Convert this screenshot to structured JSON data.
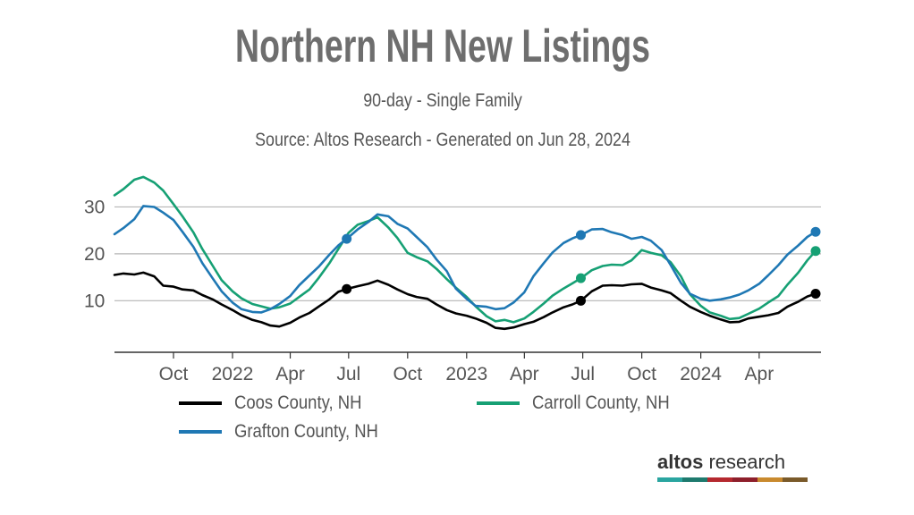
{
  "header": {
    "title": "Northern NH New Listings",
    "subtitle": "90-day - Single Family",
    "source": "Source: Altos Research - Generated on Jun 28, 2024"
  },
  "brand": {
    "name_bold": "altos",
    "name_rest": " research",
    "bar_colors": [
      "#2aa5a0",
      "#1e7a6e",
      "#b5292f",
      "#8e1f2b",
      "#c98a2e",
      "#7a5a2a"
    ]
  },
  "chart_data": {
    "type": "line",
    "title": "Northern NH New Listings",
    "subtitle": "90-day - Single Family",
    "xlabel": "",
    "ylabel": "",
    "x_start": "2021-07-01",
    "x_end": "2024-06-28",
    "ylim": [
      -1,
      36
    ],
    "yticks": [
      10,
      20,
      30
    ],
    "grid": true,
    "legend_position": "bottom",
    "xticks": [
      {
        "date": "2021-10-01",
        "label": "Oct"
      },
      {
        "date": "2022-01-01",
        "label": "2022"
      },
      {
        "date": "2022-04-01",
        "label": "Apr"
      },
      {
        "date": "2022-07-01",
        "label": "Jul"
      },
      {
        "date": "2022-10-01",
        "label": "Oct"
      },
      {
        "date": "2023-01-01",
        "label": "2023"
      },
      {
        "date": "2023-04-01",
        "label": "Apr"
      },
      {
        "date": "2023-07-01",
        "label": "Jul"
      },
      {
        "date": "2023-10-01",
        "label": "Oct"
      },
      {
        "date": "2024-01-01",
        "label": "2024"
      },
      {
        "date": "2024-04-01",
        "label": "Apr"
      }
    ],
    "series": [
      {
        "name": "Coos County, NH",
        "color": "#000000",
        "markers": [
          "2022-06-28",
          "2023-06-28",
          "2024-06-28"
        ],
        "points": [
          [
            "2021-07-01",
            15.5
          ],
          [
            "2021-07-15",
            15.8
          ],
          [
            "2021-08-01",
            15.6
          ],
          [
            "2021-08-15",
            16.0
          ],
          [
            "2021-09-01",
            15.2
          ],
          [
            "2021-09-15",
            13.2
          ],
          [
            "2021-10-01",
            13.0
          ],
          [
            "2021-10-15",
            12.4
          ],
          [
            "2021-11-01",
            12.2
          ],
          [
            "2021-11-15",
            11.2
          ],
          [
            "2021-12-01",
            10.3
          ],
          [
            "2021-12-15",
            9.2
          ],
          [
            "2022-01-01",
            8.0
          ],
          [
            "2022-01-15",
            6.9
          ],
          [
            "2022-02-01",
            5.9
          ],
          [
            "2022-02-15",
            5.4
          ],
          [
            "2022-03-01",
            4.7
          ],
          [
            "2022-03-15",
            4.5
          ],
          [
            "2022-04-01",
            5.3
          ],
          [
            "2022-04-15",
            6.4
          ],
          [
            "2022-05-01",
            7.4
          ],
          [
            "2022-05-15",
            8.7
          ],
          [
            "2022-06-01",
            10.3
          ],
          [
            "2022-06-15",
            11.9
          ],
          [
            "2022-06-28",
            12.5
          ],
          [
            "2022-07-15",
            13.1
          ],
          [
            "2022-08-01",
            13.6
          ],
          [
            "2022-08-15",
            14.3
          ],
          [
            "2022-09-01",
            13.4
          ],
          [
            "2022-09-15",
            12.4
          ],
          [
            "2022-10-01",
            11.4
          ],
          [
            "2022-10-15",
            10.8
          ],
          [
            "2022-11-01",
            10.4
          ],
          [
            "2022-11-15",
            9.2
          ],
          [
            "2022-12-01",
            8.0
          ],
          [
            "2022-12-15",
            7.3
          ],
          [
            "2023-01-01",
            6.8
          ],
          [
            "2023-01-15",
            6.2
          ],
          [
            "2023-02-01",
            5.3
          ],
          [
            "2023-02-15",
            4.2
          ],
          [
            "2023-03-01",
            4.0
          ],
          [
            "2023-03-15",
            4.3
          ],
          [
            "2023-04-01",
            5.0
          ],
          [
            "2023-04-15",
            5.5
          ],
          [
            "2023-05-01",
            6.5
          ],
          [
            "2023-05-15",
            7.5
          ],
          [
            "2023-06-01",
            8.6
          ],
          [
            "2023-06-15",
            9.2
          ],
          [
            "2023-06-28",
            10.0
          ],
          [
            "2023-07-15",
            12.0
          ],
          [
            "2023-08-01",
            13.2
          ],
          [
            "2023-08-15",
            13.3
          ],
          [
            "2023-09-01",
            13.2
          ],
          [
            "2023-09-15",
            13.5
          ],
          [
            "2023-10-01",
            13.6
          ],
          [
            "2023-10-15",
            12.8
          ],
          [
            "2023-11-01",
            12.2
          ],
          [
            "2023-11-15",
            11.6
          ],
          [
            "2023-12-01",
            10.0
          ],
          [
            "2023-12-15",
            8.7
          ],
          [
            "2024-01-01",
            7.6
          ],
          [
            "2024-01-15",
            6.8
          ],
          [
            "2024-02-01",
            6.0
          ],
          [
            "2024-02-15",
            5.4
          ],
          [
            "2024-03-01",
            5.5
          ],
          [
            "2024-03-15",
            6.2
          ],
          [
            "2024-04-01",
            6.6
          ],
          [
            "2024-04-15",
            6.9
          ],
          [
            "2024-05-01",
            7.4
          ],
          [
            "2024-05-15",
            8.7
          ],
          [
            "2024-06-01",
            9.8
          ],
          [
            "2024-06-15",
            10.9
          ],
          [
            "2024-06-28",
            11.5
          ]
        ]
      },
      {
        "name": "Carroll County, NH",
        "color": "#16a074",
        "markers": [
          "2023-06-28",
          "2024-06-28"
        ],
        "points": [
          [
            "2021-07-01",
            32.5
          ],
          [
            "2021-07-15",
            33.8
          ],
          [
            "2021-08-01",
            35.8
          ],
          [
            "2021-08-15",
            36.4
          ],
          [
            "2021-09-01",
            35.2
          ],
          [
            "2021-09-15",
            33.5
          ],
          [
            "2021-10-01",
            30.6
          ],
          [
            "2021-10-15",
            28.0
          ],
          [
            "2021-11-01",
            24.6
          ],
          [
            "2021-11-15",
            21.0
          ],
          [
            "2021-12-01",
            17.5
          ],
          [
            "2021-12-15",
            14.4
          ],
          [
            "2022-01-01",
            12.0
          ],
          [
            "2022-01-15",
            10.5
          ],
          [
            "2022-02-01",
            9.3
          ],
          [
            "2022-02-15",
            8.8
          ],
          [
            "2022-03-01",
            8.3
          ],
          [
            "2022-03-15",
            8.6
          ],
          [
            "2022-04-01",
            9.4
          ],
          [
            "2022-04-15",
            10.8
          ],
          [
            "2022-05-01",
            12.4
          ],
          [
            "2022-05-15",
            14.8
          ],
          [
            "2022-06-01",
            18.0
          ],
          [
            "2022-06-15",
            21.0
          ],
          [
            "2022-07-01",
            24.5
          ],
          [
            "2022-07-15",
            26.2
          ],
          [
            "2022-08-01",
            27.0
          ],
          [
            "2022-08-15",
            27.8
          ],
          [
            "2022-09-01",
            25.6
          ],
          [
            "2022-09-15",
            23.4
          ],
          [
            "2022-10-01",
            20.2
          ],
          [
            "2022-10-15",
            19.3
          ],
          [
            "2022-11-01",
            18.4
          ],
          [
            "2022-11-15",
            16.8
          ],
          [
            "2022-12-01",
            14.6
          ],
          [
            "2022-12-15",
            12.8
          ],
          [
            "2023-01-01",
            10.8
          ],
          [
            "2023-01-15",
            8.8
          ],
          [
            "2023-02-01",
            6.7
          ],
          [
            "2023-02-15",
            5.6
          ],
          [
            "2023-03-01",
            5.9
          ],
          [
            "2023-03-15",
            5.4
          ],
          [
            "2023-04-01",
            6.2
          ],
          [
            "2023-04-15",
            7.6
          ],
          [
            "2023-05-01",
            9.4
          ],
          [
            "2023-05-15",
            11.1
          ],
          [
            "2023-06-01",
            12.6
          ],
          [
            "2023-06-15",
            13.7
          ],
          [
            "2023-06-28",
            14.8
          ],
          [
            "2023-07-15",
            16.5
          ],
          [
            "2023-08-01",
            17.4
          ],
          [
            "2023-08-15",
            17.7
          ],
          [
            "2023-09-01",
            17.6
          ],
          [
            "2023-09-15",
            18.6
          ],
          [
            "2023-10-01",
            20.8
          ],
          [
            "2023-10-15",
            20.2
          ],
          [
            "2023-11-01",
            19.7
          ],
          [
            "2023-11-15",
            18.2
          ],
          [
            "2023-12-01",
            15.2
          ],
          [
            "2023-12-15",
            11.4
          ],
          [
            "2024-01-01",
            8.9
          ],
          [
            "2024-01-15",
            7.5
          ],
          [
            "2024-02-01",
            6.8
          ],
          [
            "2024-02-15",
            6.1
          ],
          [
            "2024-03-01",
            6.3
          ],
          [
            "2024-03-15",
            7.2
          ],
          [
            "2024-04-01",
            8.3
          ],
          [
            "2024-04-15",
            9.6
          ],
          [
            "2024-05-01",
            11.0
          ],
          [
            "2024-05-15",
            13.4
          ],
          [
            "2024-06-01",
            16.0
          ],
          [
            "2024-06-15",
            18.6
          ],
          [
            "2024-06-28",
            20.6
          ]
        ]
      },
      {
        "name": "Grafton County, NH",
        "color": "#1f78b4",
        "markers": [
          "2022-06-28",
          "2023-06-28",
          "2024-06-28"
        ],
        "points": [
          [
            "2021-07-01",
            24.2
          ],
          [
            "2021-07-15",
            25.5
          ],
          [
            "2021-08-01",
            27.4
          ],
          [
            "2021-08-15",
            30.2
          ],
          [
            "2021-09-01",
            30.0
          ],
          [
            "2021-09-15",
            28.8
          ],
          [
            "2021-10-01",
            27.2
          ],
          [
            "2021-10-15",
            24.7
          ],
          [
            "2021-11-01",
            21.5
          ],
          [
            "2021-11-15",
            18.0
          ],
          [
            "2021-12-01",
            14.8
          ],
          [
            "2021-12-15",
            12.0
          ],
          [
            "2022-01-01",
            9.6
          ],
          [
            "2022-01-15",
            8.2
          ],
          [
            "2022-02-01",
            7.6
          ],
          [
            "2022-02-15",
            7.5
          ],
          [
            "2022-03-01",
            8.2
          ],
          [
            "2022-03-15",
            9.3
          ],
          [
            "2022-04-01",
            11.0
          ],
          [
            "2022-04-15",
            13.3
          ],
          [
            "2022-05-01",
            15.4
          ],
          [
            "2022-05-15",
            17.2
          ],
          [
            "2022-06-01",
            19.8
          ],
          [
            "2022-06-15",
            21.8
          ],
          [
            "2022-06-28",
            23.2
          ],
          [
            "2022-07-15",
            25.2
          ],
          [
            "2022-08-01",
            26.8
          ],
          [
            "2022-08-15",
            28.4
          ],
          [
            "2022-09-01",
            28.0
          ],
          [
            "2022-09-15",
            26.4
          ],
          [
            "2022-10-01",
            25.4
          ],
          [
            "2022-10-15",
            23.6
          ],
          [
            "2022-11-01",
            21.4
          ],
          [
            "2022-11-15",
            18.8
          ],
          [
            "2022-12-01",
            16.3
          ],
          [
            "2022-12-15",
            12.6
          ],
          [
            "2023-01-01",
            10.4
          ],
          [
            "2023-01-15",
            8.9
          ],
          [
            "2023-02-01",
            8.7
          ],
          [
            "2023-02-15",
            8.2
          ],
          [
            "2023-03-01",
            8.4
          ],
          [
            "2023-03-15",
            9.6
          ],
          [
            "2023-04-01",
            11.8
          ],
          [
            "2023-04-15",
            15.2
          ],
          [
            "2023-05-01",
            18.0
          ],
          [
            "2023-05-15",
            20.3
          ],
          [
            "2023-06-01",
            22.3
          ],
          [
            "2023-06-15",
            23.3
          ],
          [
            "2023-06-28",
            24.0
          ],
          [
            "2023-07-15",
            25.2
          ],
          [
            "2023-08-01",
            25.3
          ],
          [
            "2023-08-15",
            24.6
          ],
          [
            "2023-09-01",
            24.0
          ],
          [
            "2023-09-15",
            23.2
          ],
          [
            "2023-10-01",
            23.6
          ],
          [
            "2023-10-15",
            22.8
          ],
          [
            "2023-11-01",
            20.8
          ],
          [
            "2023-11-15",
            17.6
          ],
          [
            "2023-12-01",
            13.8
          ],
          [
            "2023-12-15",
            11.5
          ],
          [
            "2024-01-01",
            10.4
          ],
          [
            "2024-01-15",
            10.0
          ],
          [
            "2024-02-01",
            10.3
          ],
          [
            "2024-02-15",
            10.7
          ],
          [
            "2024-03-01",
            11.3
          ],
          [
            "2024-03-15",
            12.2
          ],
          [
            "2024-04-01",
            13.6
          ],
          [
            "2024-04-15",
            15.4
          ],
          [
            "2024-05-01",
            17.6
          ],
          [
            "2024-05-15",
            19.8
          ],
          [
            "2024-06-01",
            21.8
          ],
          [
            "2024-06-15",
            23.6
          ],
          [
            "2024-06-28",
            24.7
          ]
        ]
      }
    ]
  }
}
